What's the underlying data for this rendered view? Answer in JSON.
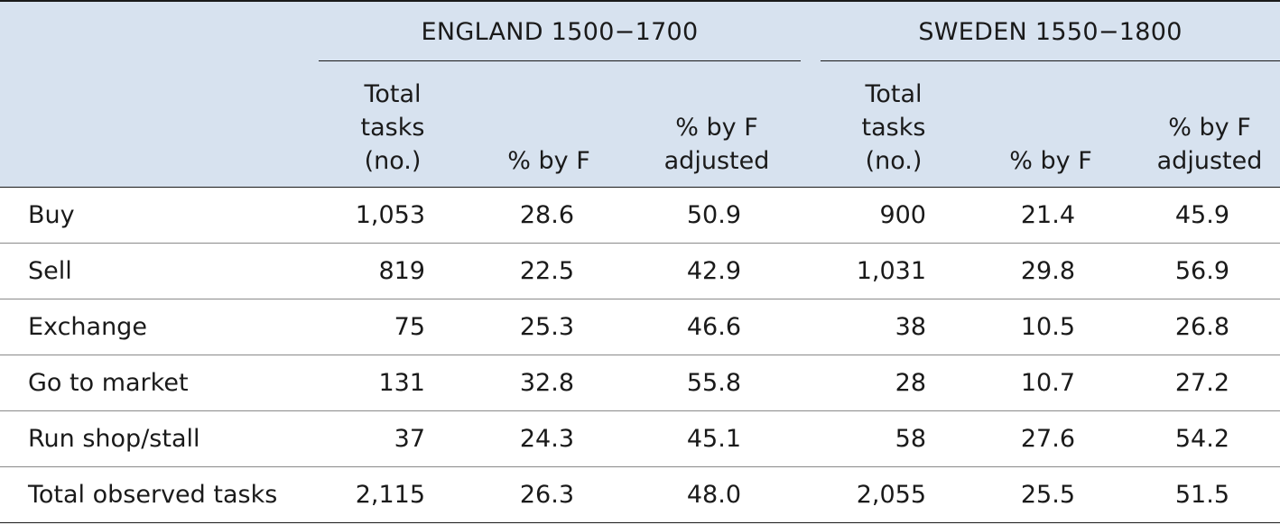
{
  "groups": [
    {
      "title": "ENGLAND 1500−1700"
    },
    {
      "title": "SWEDEN 1550−1800"
    }
  ],
  "columns": {
    "total_tasks": [
      "Total",
      "tasks",
      "(no.)"
    ],
    "pct_by_f": "% by F",
    "pct_adjusted": [
      "% by F",
      "adjusted"
    ]
  },
  "rows": [
    {
      "label": "Buy",
      "eng_total": "1,053",
      "eng_pct": "28.6",
      "eng_adj": "50.9",
      "swe_total": "900",
      "swe_pct": "21.4",
      "swe_adj": "45.9"
    },
    {
      "label": "Sell",
      "eng_total": "819",
      "eng_pct": "22.5",
      "eng_adj": "42.9",
      "swe_total": "1,031",
      "swe_pct": "29.8",
      "swe_adj": "56.9"
    },
    {
      "label": "Exchange",
      "eng_total": "75",
      "eng_pct": "25.3",
      "eng_adj": "46.6",
      "swe_total": "38",
      "swe_pct": "10.5",
      "swe_adj": "26.8"
    },
    {
      "label": "Go to market",
      "eng_total": "131",
      "eng_pct": "32.8",
      "eng_adj": "55.8",
      "swe_total": "28",
      "swe_pct": "10.7",
      "swe_adj": "27.2"
    },
    {
      "label": "Run shop/stall",
      "eng_total": "37",
      "eng_pct": "24.3",
      "eng_adj": "45.1",
      "swe_total": "58",
      "swe_pct": "27.6",
      "swe_adj": "54.2"
    },
    {
      "label": "Total observed tasks",
      "eng_total": "2,115",
      "eng_pct": "26.3",
      "eng_adj": "48.0",
      "swe_total": "2,055",
      "swe_pct": "25.5",
      "swe_adj": "51.5"
    }
  ],
  "colors": {
    "header_background": "#d7e2ef",
    "rule": "#1a1a1a"
  }
}
